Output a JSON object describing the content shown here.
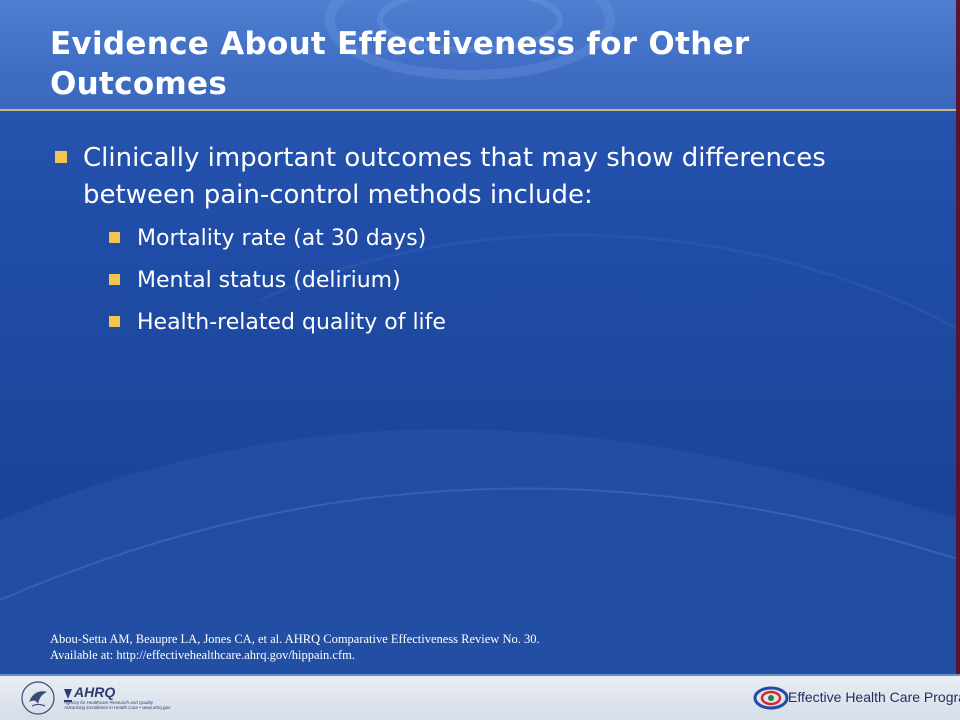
{
  "slide": {
    "title": "Evidence About Effectiveness for Other Outcomes",
    "main_bullet": "Clinically important outcomes that may show differences between pain-control methods include:",
    "sub_bullets": [
      "Mortality rate (at 30 days)",
      "Mental status (delirium)",
      "Health-related quality of life"
    ],
    "citation_line1": "Abou-Setta AM, Beaupre LA, Jones CA, et al. AHRQ Comparative Effectiveness Review No. 30.",
    "citation_line2": "Available at:  http://effectivehealthcare.ahrq.gov/hippain.cfm."
  },
  "footer": {
    "ahrq_logo_text": "AHRQ",
    "ahrq_tagline_1": "Agency for Healthcare Research and Quality",
    "ahrq_tagline_2": "Advancing Excellence in Health Care • www.ahrq.gov",
    "program_name": "Effective Health Care Program"
  },
  "colors": {
    "background": "#1f4ca6",
    "header": "#4474c6",
    "bullet_square": "#f3c44e",
    "text": "#ffffff",
    "accent_edge": "#5b1330"
  },
  "icons": [
    "hhs-eagle-icon",
    "ahrq-logo-icon",
    "ehc-swirl-icon"
  ]
}
